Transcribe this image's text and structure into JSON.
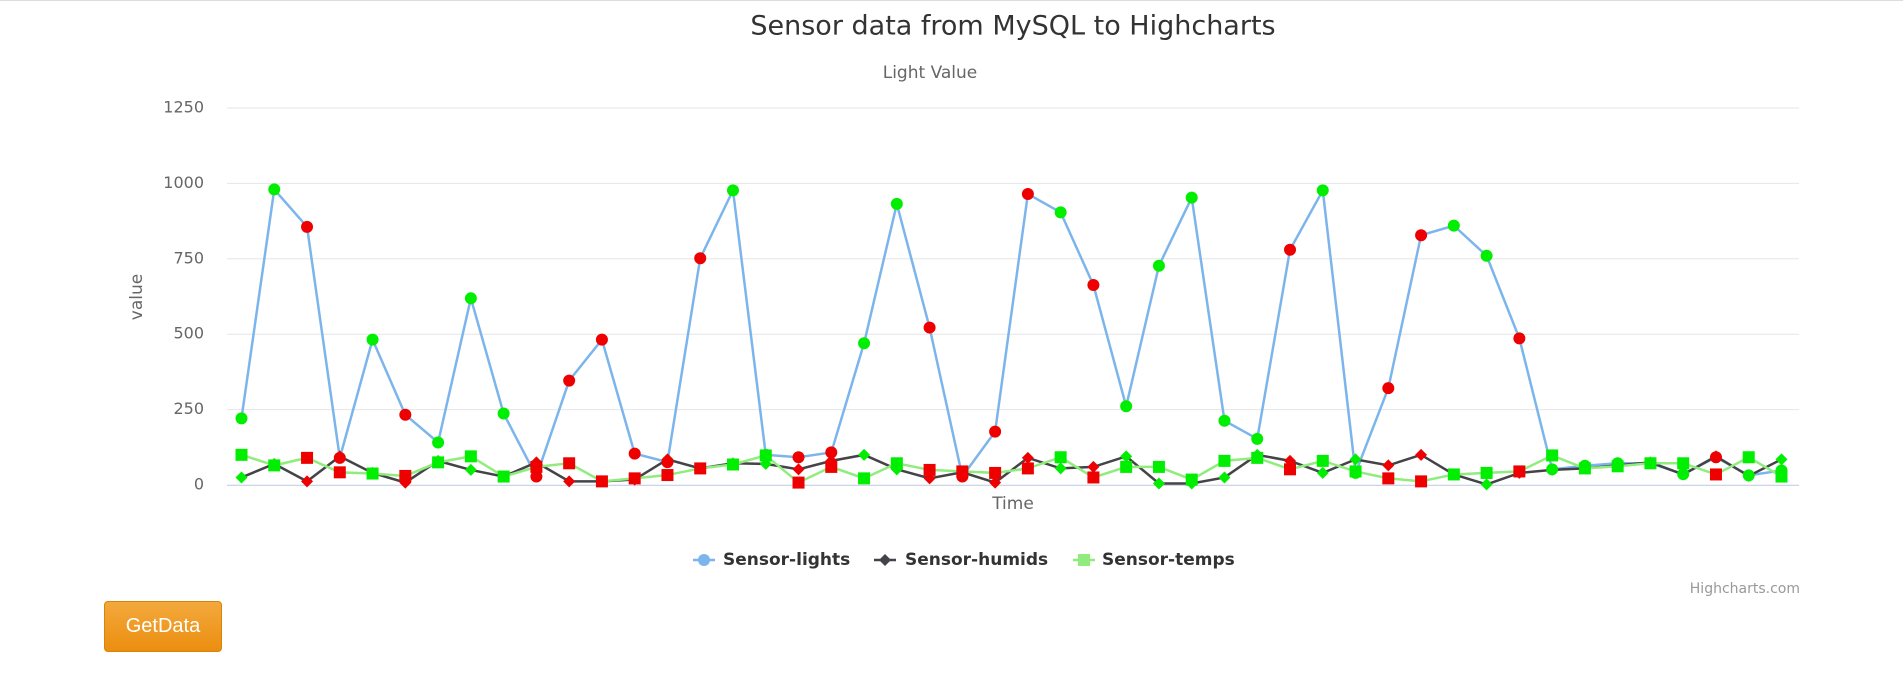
{
  "chart_data": {
    "type": "line",
    "title": "Sensor data from MySQL to Highcharts",
    "subtitle": "Light Value",
    "x_label": "Time",
    "y_label": "value",
    "ylim": [
      0,
      1250
    ],
    "yticks": [
      0,
      250,
      500,
      750,
      1000,
      1250
    ],
    "grid": true,
    "legend": "bottom",
    "credits": "Highcharts.com",
    "button": "GetData",
    "point_colors": [
      "#00ee00",
      "#00ee00",
      "#ee0000",
      "#ee0000",
      "#00ee00",
      "#ee0000",
      "#00ee00",
      "#00ee00",
      "#00ee00",
      "#ee0000",
      "#ee0000",
      "#ee0000",
      "#ee0000",
      "#ee0000",
      "#ee0000",
      "#00ee00",
      "#00ee00",
      "#ee0000",
      "#ee0000",
      "#00ee00",
      "#00ee00",
      "#ee0000",
      "#ee0000",
      "#ee0000",
      "#ee0000",
      "#00ee00",
      "#ee0000",
      "#00ee00",
      "#00ee00",
      "#00ee00",
      "#00ee00",
      "#00ee00",
      "#ee0000",
      "#00ee00",
      "#00ee00",
      "#ee0000",
      "#ee0000",
      "#00ee00",
      "#00ee00",
      "#ee0000",
      "#00ee00",
      "#00ee00",
      "#00ee00",
      "#00ee00",
      "#00ee00",
      "#ee0000",
      "#00ee00",
      "#00ee00"
    ],
    "series": [
      {
        "name": "Sensor-lights",
        "color": "#7cb5ec",
        "marker": "circle",
        "values": [
          221,
          980,
          856,
          90,
          482,
          233,
          141,
          619,
          237,
          28,
          346,
          482,
          104,
          76,
          752,
          977,
          100,
          92,
          108,
          470,
          932,
          522,
          28,
          177,
          965,
          904,
          663,
          261,
          727,
          953,
          213,
          153,
          780,
          977,
          40,
          321,
          828,
          860,
          760,
          486,
          52,
          64,
          72,
          72,
          36,
          92,
          32,
          48
        ]
      },
      {
        "name": "Sensor-humids",
        "color": "#434348",
        "marker": "diamond",
        "values": [
          25,
          70,
          12,
          95,
          40,
          8,
          80,
          50,
          28,
          75,
          12,
          12,
          18,
          85,
          55,
          72,
          70,
          52,
          80,
          100,
          52,
          22,
          42,
          8,
          90,
          55,
          60,
          95,
          5,
          5,
          25,
          100,
          80,
          40,
          85,
          65,
          100,
          35,
          2,
          40,
          50,
          55,
          65,
          75,
          35,
          95,
          30,
          85
        ]
      },
      {
        "name": "Sensor-temps",
        "color": "#90ed7d",
        "marker": "square",
        "values": [
          100,
          65,
          90,
          42,
          38,
          30,
          75,
          95,
          28,
          60,
          72,
          12,
          22,
          33,
          55,
          68,
          98,
          8,
          60,
          22,
          72,
          50,
          45,
          40,
          55,
          92,
          25,
          60,
          60,
          18,
          80,
          90,
          52,
          80,
          45,
          22,
          12,
          35,
          40,
          45,
          98,
          55,
          62,
          72,
          72,
          35,
          92,
          28
        ]
      }
    ]
  }
}
